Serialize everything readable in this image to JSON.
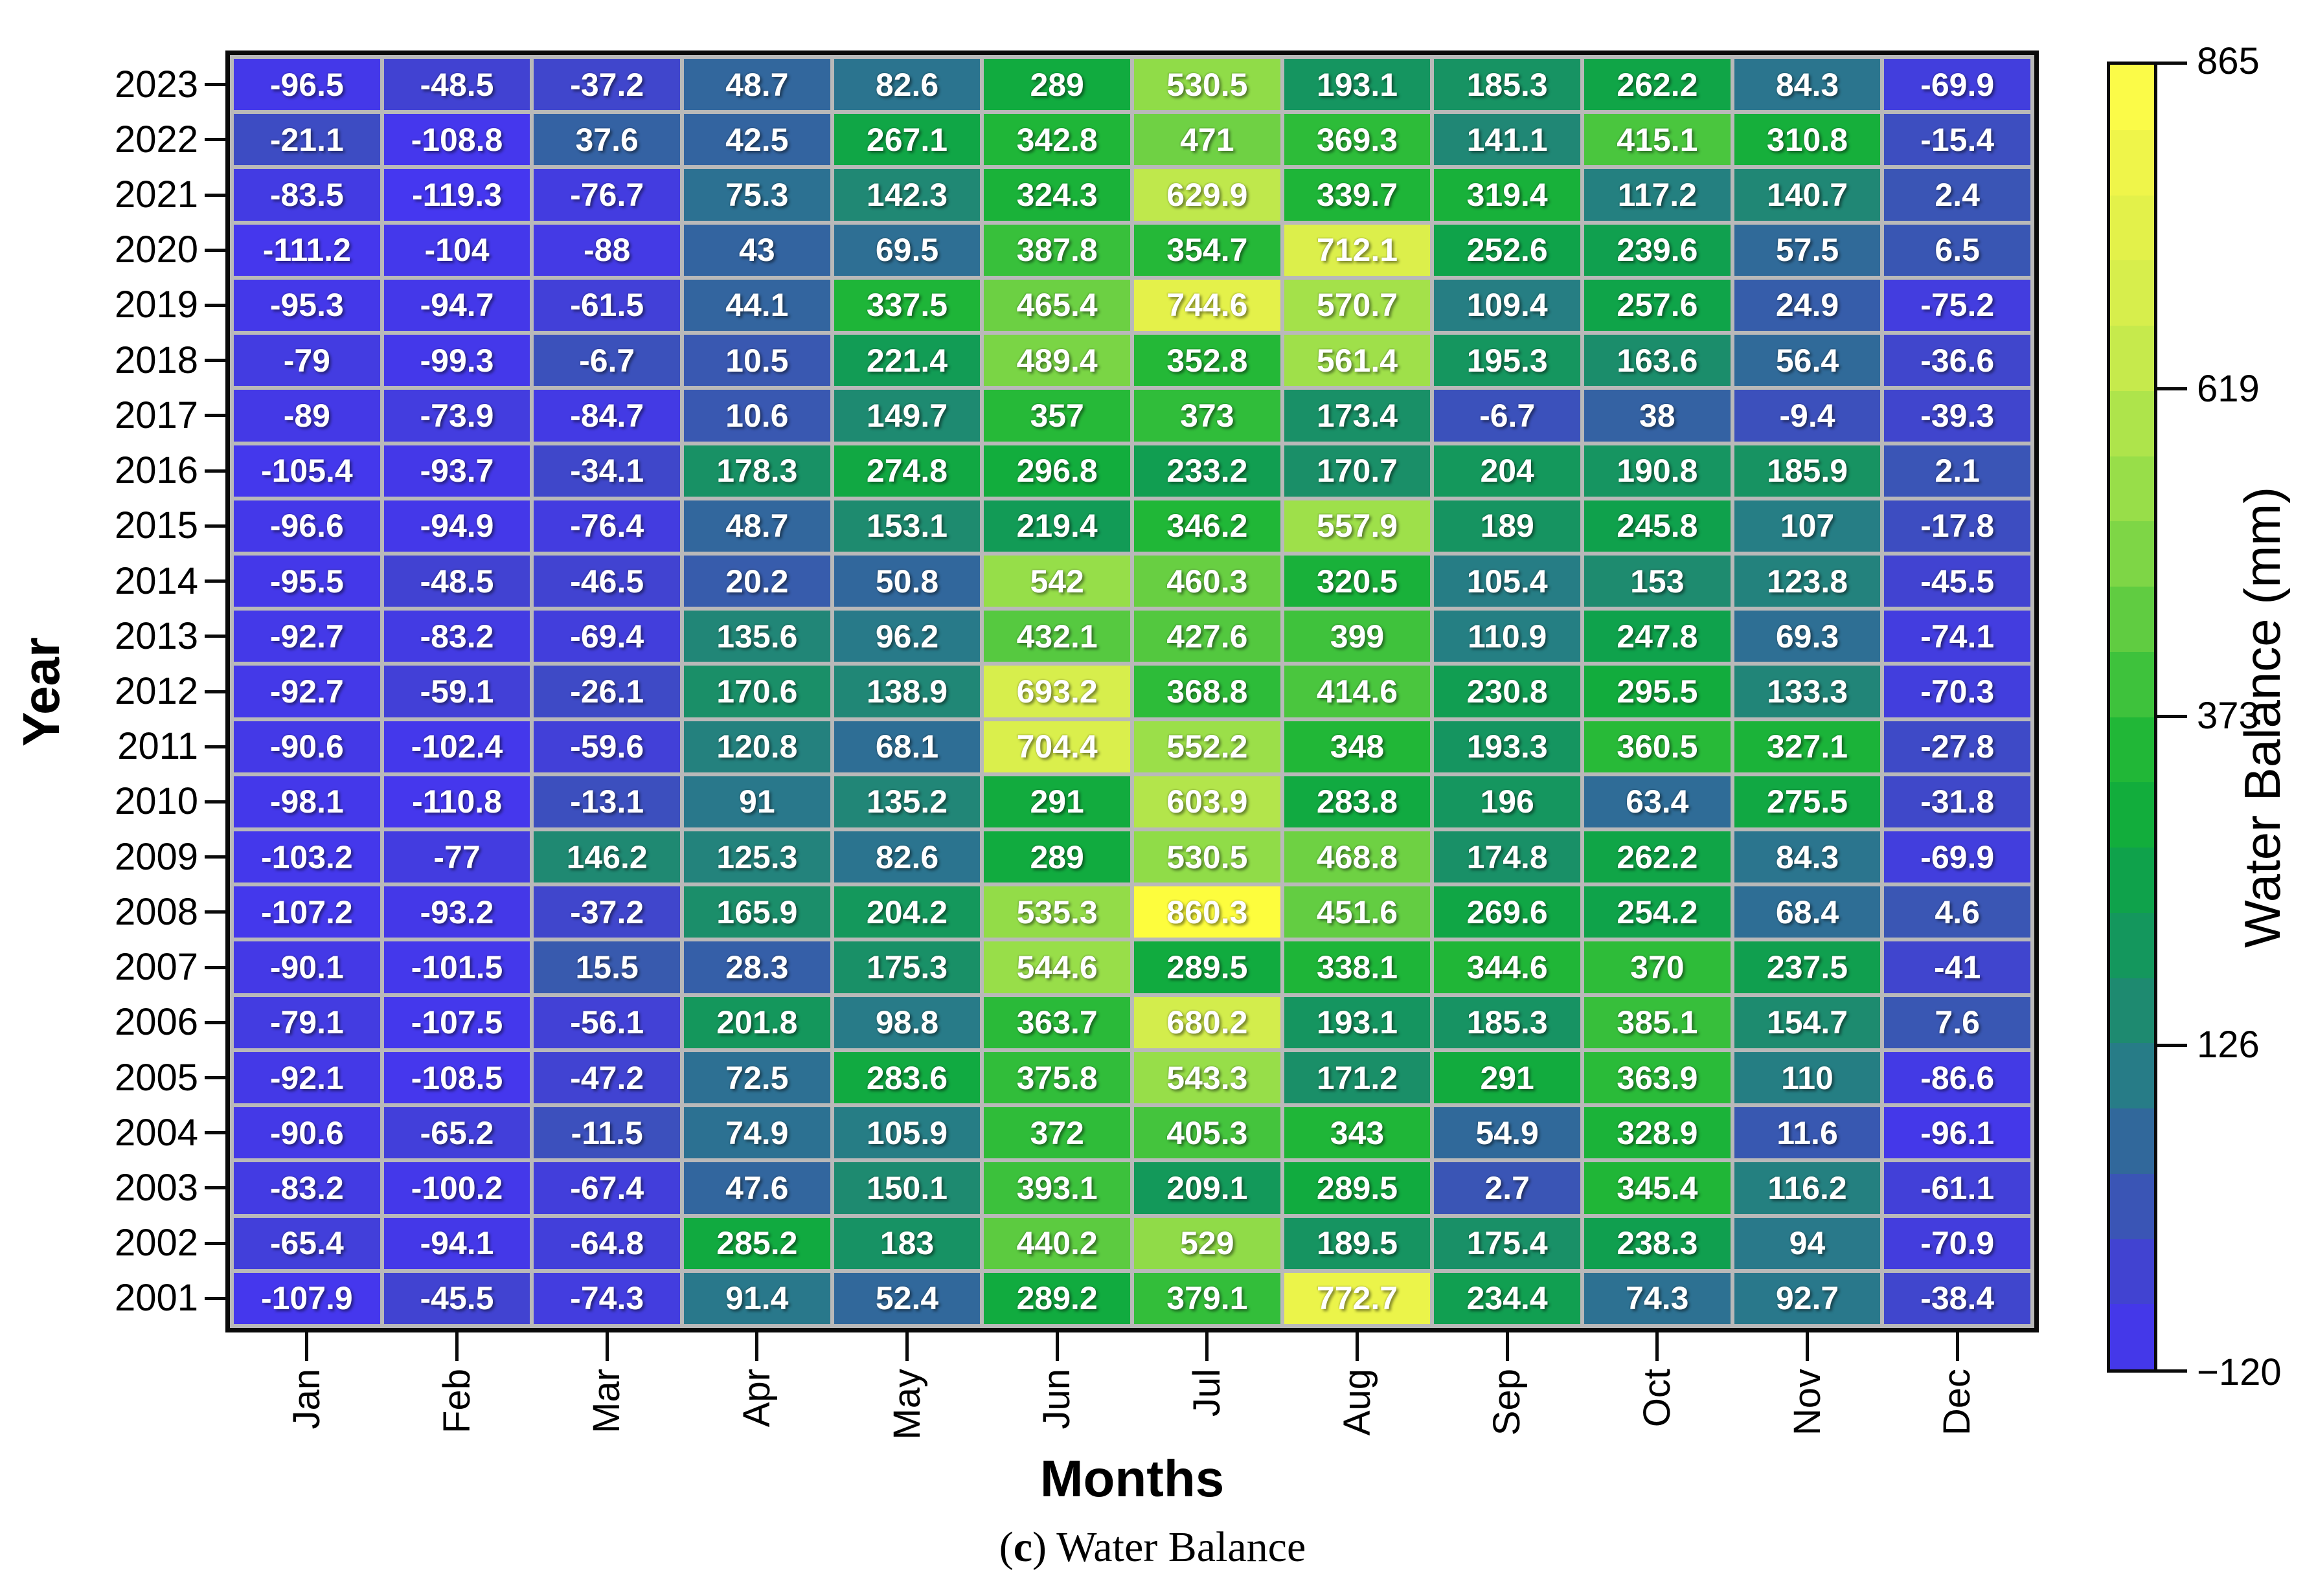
{
  "figure": {
    "caption": {
      "open": "(",
      "letter": "c",
      "rest": ") Water Balance"
    }
  },
  "axes": {
    "x_title": "Months",
    "y_title": "Year",
    "months": [
      "Jan",
      "Feb",
      "Mar",
      "Apr",
      "May",
      "Jun",
      "Jul",
      "Aug",
      "Sep",
      "Oct",
      "Nov",
      "Dec"
    ],
    "years": [
      "2023",
      "2022",
      "2021",
      "2020",
      "2019",
      "2018",
      "2017",
      "2016",
      "2015",
      "2014",
      "2013",
      "2012",
      "2011",
      "2010",
      "2009",
      "2008",
      "2007",
      "2006",
      "2005",
      "2004",
      "2003",
      "2002",
      "2001"
    ]
  },
  "colorbar": {
    "title": "Water Balance (mm)",
    "tick_labels": [
      "865",
      "619",
      "373",
      "126",
      "−120"
    ],
    "tick_values": [
      865,
      619,
      373,
      126,
      -120
    ],
    "vmin": -120,
    "vmax": 865,
    "levels": 20
  },
  "chart_data": {
    "type": "heatmap",
    "title": "Water Balance",
    "unit": "mm",
    "xlabel": "Months",
    "ylabel": "Year",
    "x": [
      "Jan",
      "Feb",
      "Mar",
      "Apr",
      "May",
      "Jun",
      "Jul",
      "Aug",
      "Sep",
      "Oct",
      "Nov",
      "Dec"
    ],
    "y": [
      2023,
      2022,
      2021,
      2020,
      2019,
      2018,
      2017,
      2016,
      2015,
      2014,
      2013,
      2012,
      2011,
      2010,
      2009,
      2008,
      2007,
      2006,
      2005,
      2004,
      2003,
      2002,
      2001
    ],
    "value_range": [
      -120,
      865
    ],
    "values": [
      [
        -96.5,
        -48.5,
        -37.2,
        48.7,
        82.6,
        289,
        530.5,
        193.1,
        185.3,
        262.2,
        84.3,
        -69.9
      ],
      [
        -21.1,
        -108.8,
        37.6,
        42.5,
        267.1,
        342.8,
        471,
        369.3,
        141.1,
        415.1,
        310.8,
        -15.4
      ],
      [
        -83.5,
        -119.3,
        -76.7,
        75.3,
        142.3,
        324.3,
        629.9,
        339.7,
        319.4,
        117.2,
        140.7,
        2.4
      ],
      [
        -111.2,
        -104,
        -88,
        43,
        69.5,
        387.8,
        354.7,
        712.1,
        252.6,
        239.6,
        57.5,
        6.5
      ],
      [
        -95.3,
        -94.7,
        -61.5,
        44.1,
        337.5,
        465.4,
        744.6,
        570.7,
        109.4,
        257.6,
        24.9,
        -75.2
      ],
      [
        -79,
        -99.3,
        -6.7,
        10.5,
        221.4,
        489.4,
        352.8,
        561.4,
        195.3,
        163.6,
        56.4,
        -36.6
      ],
      [
        -89,
        -73.9,
        -84.7,
        10.6,
        149.7,
        357,
        373,
        173.4,
        -6.7,
        38,
        -9.4,
        -39.3
      ],
      [
        -105.4,
        -93.7,
        -34.1,
        178.3,
        274.8,
        296.8,
        233.2,
        170.7,
        204,
        190.8,
        185.9,
        2.1
      ],
      [
        -96.6,
        -94.9,
        -76.4,
        48.7,
        153.1,
        219.4,
        346.2,
        557.9,
        189,
        245.8,
        107,
        -17.8
      ],
      [
        -95.5,
        -48.5,
        -46.5,
        20.2,
        50.8,
        542,
        460.3,
        320.5,
        105.4,
        153,
        123.8,
        -45.5
      ],
      [
        -92.7,
        -83.2,
        -69.4,
        135.6,
        96.2,
        432.1,
        427.6,
        399,
        110.9,
        247.8,
        69.3,
        -74.1
      ],
      [
        -92.7,
        -59.1,
        -26.1,
        170.6,
        138.9,
        693.2,
        368.8,
        414.6,
        230.8,
        295.5,
        133.3,
        -70.3
      ],
      [
        -90.6,
        -102.4,
        -59.6,
        120.8,
        68.1,
        704.4,
        552.2,
        348,
        193.3,
        360.5,
        327.1,
        -27.8
      ],
      [
        -98.1,
        -110.8,
        -13.1,
        91,
        135.2,
        291,
        603.9,
        283.8,
        196,
        63.4,
        275.5,
        -31.8
      ],
      [
        -103.2,
        -77,
        146.2,
        125.3,
        82.6,
        289,
        530.5,
        468.8,
        174.8,
        262.2,
        84.3,
        -69.9
      ],
      [
        -107.2,
        -93.2,
        -37.2,
        165.9,
        204.2,
        535.3,
        860.3,
        451.6,
        269.6,
        254.2,
        68.4,
        4.6
      ],
      [
        -90.1,
        -101.5,
        15.5,
        28.3,
        175.3,
        544.6,
        289.5,
        338.1,
        344.6,
        370,
        237.5,
        -41
      ],
      [
        -79.1,
        -107.5,
        -56.1,
        201.8,
        98.8,
        363.7,
        680.2,
        193.1,
        185.3,
        385.1,
        154.7,
        7.6
      ],
      [
        -92.1,
        -108.5,
        -47.2,
        72.5,
        283.6,
        375.8,
        543.3,
        171.2,
        291,
        363.9,
        110,
        -86.6
      ],
      [
        -90.6,
        -65.2,
        -11.5,
        74.9,
        105.9,
        372,
        405.3,
        343,
        54.9,
        328.9,
        11.6,
        -96.1
      ],
      [
        -83.2,
        -100.2,
        -67.4,
        47.6,
        150.1,
        393.1,
        209.1,
        289.5,
        2.7,
        345.4,
        116.2,
        -61.1
      ],
      [
        -65.4,
        -94.1,
        -64.8,
        285.2,
        183,
        440.2,
        529,
        189.5,
        175.4,
        238.3,
        94,
        -70.9
      ],
      [
        -107.9,
        -45.5,
        -74.3,
        91.4,
        52.4,
        289.2,
        379.1,
        772.7,
        234.4,
        74.3,
        92.7,
        -38.4
      ]
    ],
    "colormap_stops": [
      [
        -120,
        "#4537f0"
      ],
      [
        -95.4,
        "#4438e9"
      ],
      [
        -46.1,
        "#4143d1"
      ],
      [
        3.1,
        "#3a55b5"
      ],
      [
        52.4,
        "#31689b"
      ],
      [
        101.7,
        "#277c87"
      ],
      [
        150.9,
        "#1e8a70"
      ],
      [
        200.1,
        "#14975d"
      ],
      [
        249.6,
        "#0fa24b"
      ],
      [
        298.9,
        "#12ad3c"
      ],
      [
        348.4,
        "#21b737"
      ],
      [
        397.1,
        "#3ec23c"
      ],
      [
        446.4,
        "#60cc41"
      ],
      [
        495.6,
        "#7ed646"
      ],
      [
        544.9,
        "#98de49"
      ],
      [
        594.1,
        "#aee44b"
      ],
      [
        643.4,
        "#c6ea4c"
      ],
      [
        692.6,
        "#d7ee4c"
      ],
      [
        741.9,
        "#e3f14a"
      ],
      [
        791.1,
        "#eff54a"
      ],
      [
        840.4,
        "#fbfb48"
      ],
      [
        865,
        "#fdfd3a"
      ]
    ],
    "legend_position": "right-colorbar",
    "grid": "gray cell separators, black outer frame"
  }
}
